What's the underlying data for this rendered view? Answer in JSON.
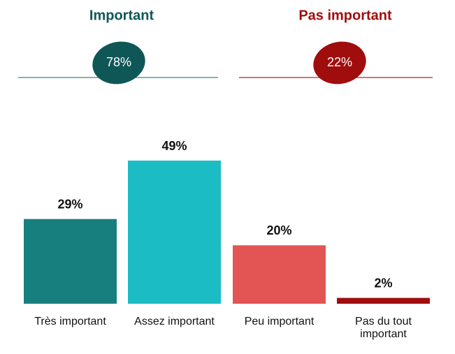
{
  "chart_data": {
    "type": "bar",
    "summaries": [
      {
        "title": "Important",
        "value": 78,
        "value_label": "78%",
        "color": "#0f5757",
        "title_color": "#0f5757",
        "line_color": "#5f9797"
      },
      {
        "title": "Pas important",
        "value": 22,
        "value_label": "22%",
        "color": "#a00d0d",
        "title_color": "#a00d0d",
        "line_color": "#c24b4b"
      }
    ],
    "categories": [
      "Très important",
      "Assez important",
      "Peu important",
      "Pas du tout important"
    ],
    "values": [
      29,
      49,
      20,
      2
    ],
    "value_labels": [
      "29%",
      "49%",
      "20%",
      "2%"
    ],
    "colors": [
      "#17807f",
      "#1bbcc4",
      "#e35454",
      "#a00d0d"
    ]
  }
}
